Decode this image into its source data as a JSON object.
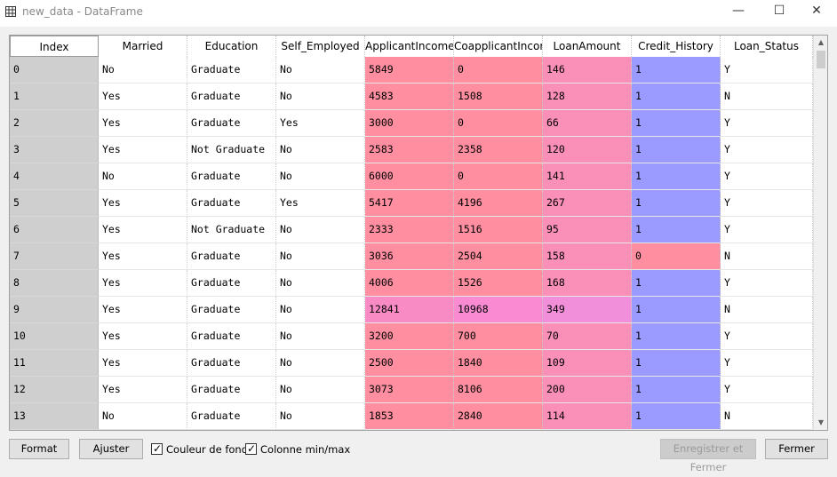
{
  "window": {
    "title": "new_data - DataFrame",
    "min_glyph": "—",
    "max_glyph": "☐",
    "close_glyph": "✕"
  },
  "columns": [
    "Index",
    "Married",
    "Education",
    "Self_Employed",
    "ApplicantIncome",
    "CoapplicantIncome",
    "LoanAmount",
    "Credit_History",
    "Loan_Status"
  ],
  "rows": [
    [
      "0",
      "No",
      "Graduate",
      "No",
      "5849",
      "0",
      "146",
      "1",
      "Y"
    ],
    [
      "1",
      "Yes",
      "Graduate",
      "No",
      "4583",
      "1508",
      "128",
      "1",
      "N"
    ],
    [
      "2",
      "Yes",
      "Graduate",
      "Yes",
      "3000",
      "0",
      "66",
      "1",
      "Y"
    ],
    [
      "3",
      "Yes",
      "Not Graduate",
      "No",
      "2583",
      "2358",
      "120",
      "1",
      "Y"
    ],
    [
      "4",
      "No",
      "Graduate",
      "No",
      "6000",
      "0",
      "141",
      "1",
      "Y"
    ],
    [
      "5",
      "Yes",
      "Graduate",
      "Yes",
      "5417",
      "4196",
      "267",
      "1",
      "Y"
    ],
    [
      "6",
      "Yes",
      "Not Graduate",
      "No",
      "2333",
      "1516",
      "95",
      "1",
      "Y"
    ],
    [
      "7",
      "Yes",
      "Graduate",
      "No",
      "3036",
      "2504",
      "158",
      "0",
      "N"
    ],
    [
      "8",
      "Yes",
      "Graduate",
      "No",
      "4006",
      "1526",
      "168",
      "1",
      "Y"
    ],
    [
      "9",
      "Yes",
      "Graduate",
      "No",
      "12841",
      "10968",
      "349",
      "1",
      "N"
    ],
    [
      "10",
      "Yes",
      "Graduate",
      "No",
      "3200",
      "700",
      "70",
      "1",
      "Y"
    ],
    [
      "11",
      "Yes",
      "Graduate",
      "No",
      "2500",
      "1840",
      "109",
      "1",
      "Y"
    ],
    [
      "12",
      "Yes",
      "Graduate",
      "No",
      "3073",
      "8106",
      "200",
      "1",
      "Y"
    ],
    [
      "13",
      "No",
      "Graduate",
      "No",
      "1853",
      "2840",
      "114",
      "1",
      "N"
    ]
  ],
  "colors": {
    "applicant_income": "#ff8fa0",
    "applicant_income_high": "#f98bc4",
    "coapplicant_income": "#ff8fa0",
    "coapplicant_income_high": "#f98bd2",
    "loan_amount": "#fa8fb8",
    "loan_amount_high": "#f28fda",
    "credit_history_1": "#9b9bff",
    "credit_history_0": "#ff8fa0"
  },
  "buttons": {
    "format": "Format",
    "resize": "Ajuster",
    "save_close": "Enregistrer et Fermer",
    "close": "Fermer"
  },
  "checkboxes": {
    "bg_color": {
      "label": "Couleur de fond",
      "checked": true
    },
    "column_minmax": {
      "label": "Colonne min/max",
      "checked": true
    }
  },
  "scroll_arrows": {
    "up": "▲",
    "down": "▼"
  }
}
